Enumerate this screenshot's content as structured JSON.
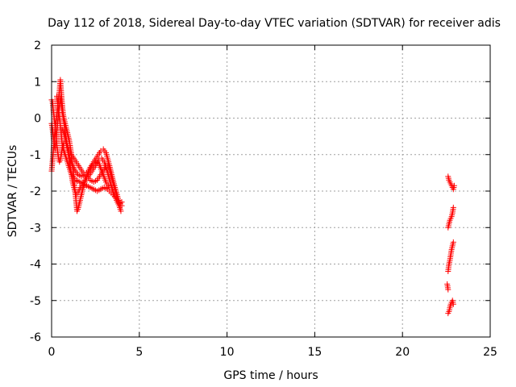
{
  "chart_data": {
    "type": "scatter",
    "title": "Day 112 of 2018, Sidereal Day-to-day VTEC variation (SDTVAR) for receiver adis",
    "xlabel": "GPS time / hours",
    "ylabel": "SDTVAR / TECUs",
    "xlim": [
      0,
      25
    ],
    "ylim": [
      -6,
      2
    ],
    "grid": true,
    "marker": "plus",
    "x_ticks": [
      {
        "value": 0,
        "label": "0"
      },
      {
        "value": 5,
        "label": "5"
      },
      {
        "value": 10,
        "label": "10"
      },
      {
        "value": 15,
        "label": "15"
      },
      {
        "value": 20,
        "label": "20"
      },
      {
        "value": 25,
        "label": "25"
      }
    ],
    "y_ticks": [
      {
        "value": -6,
        "label": "-6"
      },
      {
        "value": -5,
        "label": "-5"
      },
      {
        "value": -4,
        "label": "-4"
      },
      {
        "value": -3,
        "label": "-3"
      },
      {
        "value": -2,
        "label": "-2"
      },
      {
        "value": -1,
        "label": "-1"
      },
      {
        "value": 0,
        "label": "0"
      },
      {
        "value": 1,
        "label": "1"
      },
      {
        "value": 2,
        "label": "2"
      }
    ],
    "series": [
      {
        "name": "SDTVAR",
        "color": "#ff0000",
        "tracks": [
          {
            "points": [
              [
                0.0,
                -1.45
              ],
              [
                0.05,
                -1.2
              ],
              [
                0.1,
                -0.9
              ],
              [
                0.15,
                -0.6
              ],
              [
                0.2,
                -0.3
              ],
              [
                0.25,
                -0.1
              ],
              [
                0.3,
                0.1
              ],
              [
                0.35,
                0.3
              ],
              [
                0.4,
                0.55
              ],
              [
                0.45,
                0.75
              ],
              [
                0.5,
                1.05
              ],
              [
                0.55,
                0.7
              ],
              [
                0.6,
                0.4
              ],
              [
                0.65,
                0.15
              ],
              [
                0.7,
                0.0
              ],
              [
                0.8,
                -0.2
              ],
              [
                0.9,
                -0.4
              ],
              [
                1.0,
                -0.6
              ],
              [
                1.1,
                -0.9
              ],
              [
                1.2,
                -1.3
              ],
              [
                1.3,
                -1.8
              ],
              [
                1.4,
                -2.3
              ],
              [
                1.45,
                -2.55
              ],
              [
                1.5,
                -2.5
              ],
              [
                1.6,
                -2.3
              ],
              [
                1.7,
                -2.1
              ],
              [
                1.8,
                -1.9
              ],
              [
                1.9,
                -1.75
              ],
              [
                2.0,
                -1.6
              ],
              [
                2.2,
                -1.35
              ],
              [
                2.4,
                -1.2
              ],
              [
                2.6,
                -1.05
              ],
              [
                2.8,
                -0.9
              ],
              [
                2.95,
                -0.85
              ],
              [
                3.1,
                -0.95
              ],
              [
                3.3,
                -1.3
              ],
              [
                3.5,
                -1.7
              ],
              [
                3.7,
                -2.05
              ],
              [
                3.85,
                -2.3
              ],
              [
                4.0,
                -2.4
              ]
            ]
          },
          {
            "points": [
              [
                0.0,
                0.5
              ],
              [
                0.05,
                0.45
              ],
              [
                0.1,
                0.2
              ],
              [
                0.15,
                0.0
              ],
              [
                0.2,
                -0.2
              ],
              [
                0.25,
                -0.5
              ],
              [
                0.3,
                -0.75
              ],
              [
                0.35,
                -0.95
              ],
              [
                0.4,
                -1.1
              ],
              [
                0.45,
                -1.2
              ],
              [
                0.5,
                -1.15
              ],
              [
                0.55,
                -1.0
              ],
              [
                0.6,
                -0.85
              ],
              [
                0.7,
                -0.7
              ],
              [
                0.8,
                -0.65
              ],
              [
                0.9,
                -0.75
              ],
              [
                1.0,
                -0.9
              ],
              [
                1.2,
                -1.05
              ],
              [
                1.4,
                -1.2
              ],
              [
                1.6,
                -1.35
              ],
              [
                1.8,
                -1.5
              ],
              [
                2.0,
                -1.6
              ],
              [
                2.2,
                -1.7
              ],
              [
                2.4,
                -1.75
              ],
              [
                2.6,
                -1.7
              ],
              [
                2.8,
                -1.55
              ],
              [
                3.0,
                -1.4
              ],
              [
                3.1,
                -1.3
              ],
              [
                3.2,
                -1.3
              ],
              [
                3.3,
                -1.4
              ],
              [
                3.4,
                -1.6
              ],
              [
                3.55,
                -1.85
              ],
              [
                3.7,
                -2.1
              ],
              [
                3.85,
                -2.4
              ],
              [
                3.95,
                -2.55
              ]
            ]
          },
          {
            "points": [
              [
                0.0,
                -0.15
              ],
              [
                0.05,
                -0.3
              ],
              [
                0.1,
                -0.5
              ],
              [
                0.15,
                -0.7
              ],
              [
                0.2,
                -0.85
              ],
              [
                0.25,
                -0.6
              ],
              [
                0.3,
                -0.35
              ],
              [
                0.35,
                -0.1
              ],
              [
                0.4,
                0.15
              ],
              [
                0.45,
                0.35
              ],
              [
                0.5,
                0.55
              ],
              [
                0.55,
                0.4
              ],
              [
                0.6,
                0.2
              ],
              [
                0.7,
                -0.1
              ],
              [
                0.8,
                -0.45
              ],
              [
                0.9,
                -0.8
              ],
              [
                1.0,
                -1.15
              ],
              [
                1.1,
                -1.45
              ],
              [
                1.2,
                -1.75
              ],
              [
                1.3,
                -1.95
              ],
              [
                1.4,
                -2.1
              ],
              [
                1.55,
                -2.0
              ],
              [
                1.7,
                -1.85
              ],
              [
                1.9,
                -1.7
              ],
              [
                2.1,
                -1.6
              ],
              [
                2.3,
                -1.45
              ],
              [
                2.5,
                -1.3
              ],
              [
                2.7,
                -1.15
              ],
              [
                2.85,
                -1.1
              ],
              [
                3.0,
                -1.2
              ],
              [
                3.2,
                -1.5
              ],
              [
                3.4,
                -1.85
              ],
              [
                3.6,
                -2.15
              ],
              [
                3.8,
                -2.35
              ],
              [
                4.0,
                -2.3
              ]
            ]
          },
          {
            "points": [
              [
                0.3,
                0.6
              ],
              [
                0.35,
                0.4
              ],
              [
                0.4,
                0.2
              ],
              [
                0.45,
                0.0
              ],
              [
                0.5,
                -0.2
              ],
              [
                0.55,
                -0.45
              ],
              [
                0.6,
                -0.7
              ],
              [
                0.7,
                -0.9
              ],
              [
                0.8,
                -1.05
              ],
              [
                0.9,
                -1.2
              ],
              [
                1.0,
                -1.35
              ],
              [
                1.1,
                -1.5
              ],
              [
                1.2,
                -1.6
              ],
              [
                1.4,
                -1.7
              ],
              [
                1.6,
                -1.75
              ],
              [
                1.8,
                -1.8
              ],
              [
                2.0,
                -1.85
              ],
              [
                2.2,
                -1.9
              ],
              [
                2.4,
                -1.95
              ],
              [
                2.6,
                -2.0
              ],
              [
                2.8,
                -1.95
              ],
              [
                3.0,
                -1.9
              ],
              [
                3.2,
                -1.95
              ],
              [
                3.4,
                -2.05
              ],
              [
                3.6,
                -2.15
              ],
              [
                3.8,
                -2.25
              ]
            ]
          },
          {
            "points": [
              [
                0.6,
                -0.3
              ],
              [
                0.7,
                -0.4
              ],
              [
                0.8,
                -0.6
              ],
              [
                0.9,
                -0.85
              ],
              [
                1.0,
                -1.0
              ],
              [
                1.1,
                -1.2
              ],
              [
                1.3,
                -1.4
              ],
              [
                1.5,
                -1.55
              ],
              [
                1.7,
                -1.6
              ],
              [
                1.9,
                -1.55
              ],
              [
                2.1,
                -1.45
              ],
              [
                2.3,
                -1.3
              ],
              [
                2.5,
                -1.2
              ],
              [
                2.7,
                -1.25
              ],
              [
                2.9,
                -1.5
              ],
              [
                3.1,
                -1.75
              ],
              [
                3.3,
                -1.9
              ]
            ]
          },
          {
            "points": [
              [
                22.6,
                -1.6
              ],
              [
                22.65,
                -1.7
              ],
              [
                22.7,
                -1.75
              ],
              [
                22.75,
                -1.8
              ],
              [
                22.8,
                -1.85
              ],
              [
                22.85,
                -1.9
              ],
              [
                22.9,
                -1.95
              ],
              [
                22.95,
                -1.85
              ]
            ]
          },
          {
            "points": [
              [
                22.6,
                -3.0
              ],
              [
                22.65,
                -2.9
              ],
              [
                22.7,
                -2.8
              ],
              [
                22.75,
                -2.75
              ],
              [
                22.8,
                -2.7
              ],
              [
                22.85,
                -2.6
              ],
              [
                22.9,
                -2.45
              ]
            ]
          },
          {
            "points": [
              [
                22.6,
                -4.2
              ],
              [
                22.65,
                -4.0
              ],
              [
                22.7,
                -3.9
              ],
              [
                22.75,
                -3.75
              ],
              [
                22.8,
                -3.6
              ],
              [
                22.85,
                -3.5
              ],
              [
                22.9,
                -3.4
              ]
            ]
          },
          {
            "points": [
              [
                22.6,
                -5.35
              ],
              [
                22.65,
                -5.3
              ],
              [
                22.7,
                -5.2
              ],
              [
                22.75,
                -5.1
              ],
              [
                22.8,
                -5.05
              ],
              [
                22.85,
                -5.0
              ],
              [
                22.9,
                -5.1
              ]
            ]
          },
          {
            "points": [
              [
                22.55,
                -4.55
              ],
              [
                22.6,
                -4.7
              ]
            ]
          }
        ]
      }
    ]
  }
}
